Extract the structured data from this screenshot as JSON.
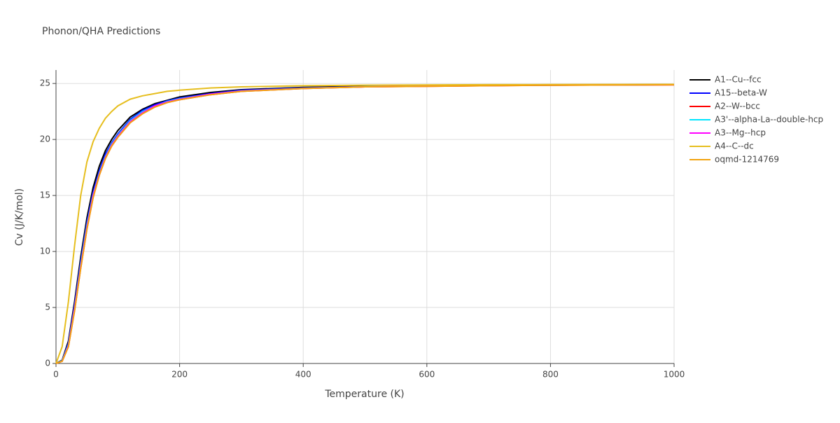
{
  "chart_data": {
    "type": "line",
    "title": "Phonon/QHA Predictions",
    "x_label": "Temperature (K)",
    "y_label": "Cv (J/K/mol)",
    "x": [
      0,
      10,
      20,
      30,
      40,
      50,
      60,
      70,
      80,
      90,
      100,
      120,
      140,
      160,
      180,
      200,
      250,
      300,
      400,
      500,
      600,
      700,
      800,
      900,
      1000
    ],
    "series": [
      {
        "name": "A1--Cu--fcc",
        "color": "#000000",
        "values": [
          0,
          0.3,
          2.0,
          5.5,
          9.5,
          13.0,
          15.7,
          17.6,
          19.0,
          20.0,
          20.8,
          22.0,
          22.7,
          23.2,
          23.5,
          23.8,
          24.2,
          24.45,
          24.65,
          24.75,
          24.8,
          24.85,
          24.87,
          24.88,
          24.9
        ]
      },
      {
        "name": "A15--beta-W",
        "color": "#0000ff",
        "values": [
          0,
          0.25,
          1.8,
          5.2,
          9.1,
          12.6,
          15.3,
          17.2,
          18.7,
          19.7,
          20.5,
          21.8,
          22.6,
          23.1,
          23.45,
          23.7,
          24.1,
          24.4,
          24.6,
          24.72,
          24.78,
          24.83,
          24.86,
          24.87,
          24.89
        ]
      },
      {
        "name": "A2--W--bcc",
        "color": "#ff0000",
        "values": [
          0,
          0.2,
          1.5,
          4.7,
          8.5,
          12.0,
          14.8,
          16.8,
          18.3,
          19.4,
          20.2,
          21.5,
          22.3,
          22.9,
          23.3,
          23.55,
          24.0,
          24.3,
          24.55,
          24.7,
          24.75,
          24.8,
          24.84,
          24.86,
          24.88
        ]
      },
      {
        "name": "A3'--alpha-La--double-hcp",
        "color": "#00e5ff",
        "values": [
          0,
          0.25,
          1.7,
          5.0,
          8.9,
          12.4,
          15.1,
          17.0,
          18.5,
          19.6,
          20.4,
          21.7,
          22.5,
          23.0,
          23.4,
          23.65,
          24.05,
          24.35,
          24.58,
          24.71,
          24.77,
          24.82,
          24.85,
          24.87,
          24.89
        ]
      },
      {
        "name": "A3--Mg--hcp",
        "color": "#ff00ff",
        "values": [
          0,
          0.22,
          1.6,
          4.9,
          8.7,
          12.2,
          15.0,
          16.9,
          18.4,
          19.5,
          20.3,
          21.6,
          22.4,
          23.0,
          23.35,
          23.6,
          24.05,
          24.33,
          24.57,
          24.7,
          24.76,
          24.81,
          24.85,
          24.87,
          24.88
        ]
      },
      {
        "name": "A4--C--dc",
        "color": "#e6be1e",
        "values": [
          0,
          1.5,
          5.5,
          10.5,
          15.0,
          18.0,
          19.8,
          21.0,
          21.9,
          22.5,
          23.0,
          23.6,
          23.9,
          24.1,
          24.3,
          24.4,
          24.6,
          24.7,
          24.8,
          24.85,
          24.87,
          24.89,
          24.9,
          24.91,
          24.92
        ]
      },
      {
        "name": "oqmd-1214769",
        "color": "#f2a30f",
        "values": [
          0,
          0.2,
          1.5,
          4.7,
          8.5,
          12.0,
          14.8,
          16.8,
          18.3,
          19.4,
          20.2,
          21.5,
          22.3,
          22.9,
          23.3,
          23.55,
          24.0,
          24.3,
          24.55,
          24.7,
          24.75,
          24.8,
          24.84,
          24.86,
          24.88
        ]
      }
    ],
    "xlim": [
      0,
      1000
    ],
    "xticks": [
      0,
      200,
      400,
      600,
      800,
      1000
    ],
    "ylim": [
      0,
      26.2
    ],
    "yticks": [
      0,
      5,
      10,
      15,
      20,
      25
    ],
    "grid": true,
    "legend": "right"
  }
}
